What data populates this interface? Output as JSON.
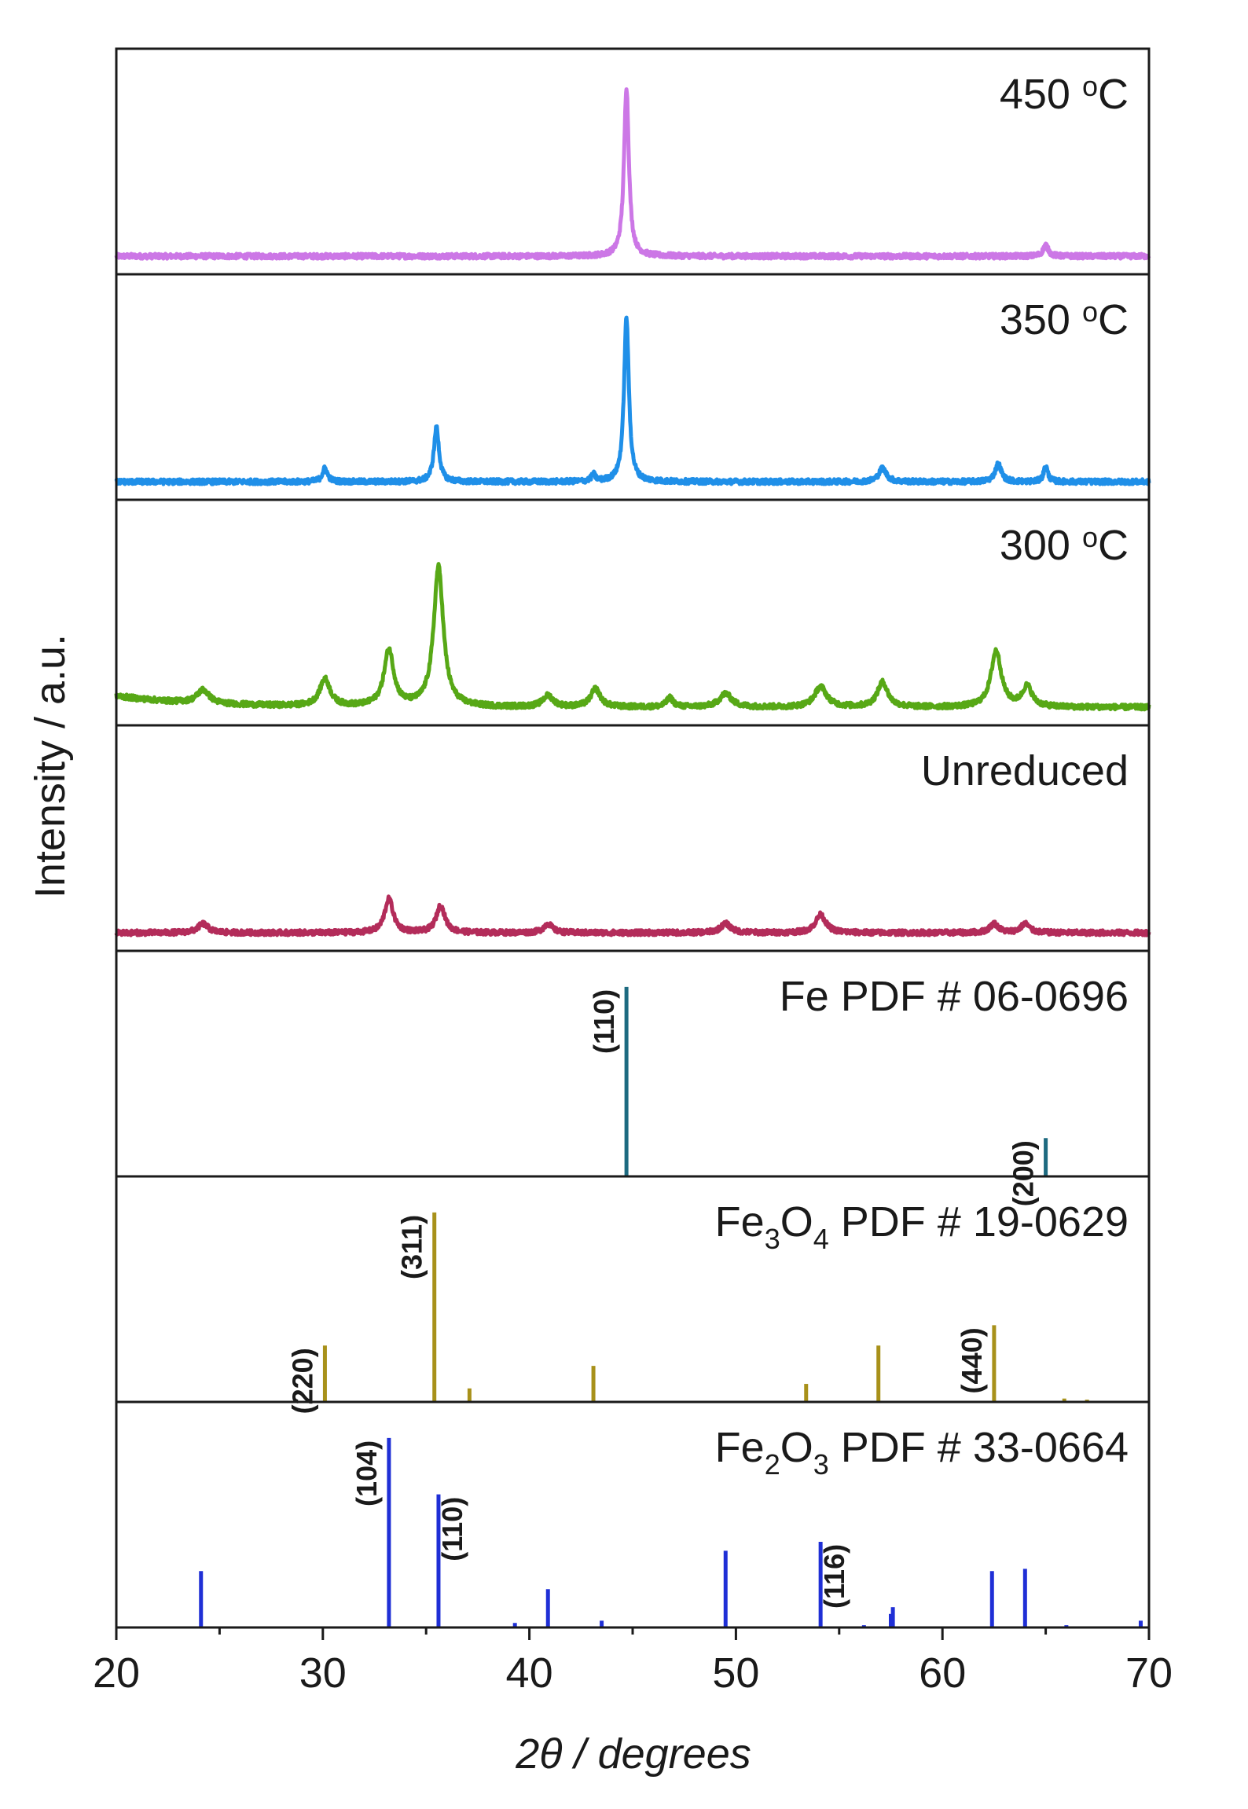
{
  "chart_data": {
    "type": "line",
    "xlabel": "2θ / degrees",
    "ylabel": "Intensity / a.u.",
    "xlim": [
      20,
      70
    ],
    "xticks": [
      20,
      30,
      40,
      50,
      60,
      70
    ],
    "xtick_labels": [
      "20",
      "30",
      "40",
      "50",
      "60",
      "70"
    ],
    "grid": false,
    "panels": [
      {
        "id": "t450",
        "label_parts": [
          "450 ",
          "o",
          "C"
        ],
        "kind": "pattern",
        "color": "#cc77e6",
        "baseline": 0.08,
        "peaks": [
          {
            "x": 44.7,
            "h": 0.75,
            "w": 0.14
          },
          {
            "x": 65.0,
            "h": 0.05,
            "w": 0.15
          }
        ]
      },
      {
        "id": "t350",
        "label_parts": [
          "350 ",
          "o",
          "C"
        ],
        "kind": "pattern",
        "color": "#1f8fe8",
        "baseline": 0.08,
        "peaks": [
          {
            "x": 30.1,
            "h": 0.06,
            "w": 0.15
          },
          {
            "x": 35.5,
            "h": 0.24,
            "w": 0.15
          },
          {
            "x": 43.1,
            "h": 0.03,
            "w": 0.12
          },
          {
            "x": 44.7,
            "h": 0.73,
            "w": 0.14
          },
          {
            "x": 57.1,
            "h": 0.06,
            "w": 0.22
          },
          {
            "x": 62.7,
            "h": 0.08,
            "w": 0.18
          },
          {
            "x": 65.0,
            "h": 0.07,
            "w": 0.12
          }
        ]
      },
      {
        "id": "t300",
        "label_parts": [
          "300 ",
          "o",
          "C"
        ],
        "kind": "pattern",
        "color": "#57a816",
        "baseline": 0.08,
        "peaks": [
          {
            "x": 24.2,
            "h": 0.06,
            "w": 0.35
          },
          {
            "x": 30.1,
            "h": 0.12,
            "w": 0.3
          },
          {
            "x": 33.2,
            "h": 0.25,
            "w": 0.28
          },
          {
            "x": 35.6,
            "h": 0.62,
            "w": 0.28
          },
          {
            "x": 40.9,
            "h": 0.05,
            "w": 0.3
          },
          {
            "x": 43.2,
            "h": 0.08,
            "w": 0.28
          },
          {
            "x": 46.8,
            "h": 0.04,
            "w": 0.2
          },
          {
            "x": 49.5,
            "h": 0.06,
            "w": 0.35
          },
          {
            "x": 54.1,
            "h": 0.09,
            "w": 0.35
          },
          {
            "x": 57.1,
            "h": 0.11,
            "w": 0.3
          },
          {
            "x": 62.6,
            "h": 0.25,
            "w": 0.3
          },
          {
            "x": 64.1,
            "h": 0.09,
            "w": 0.28
          }
        ]
      },
      {
        "id": "unreduced",
        "label_parts": [
          "Unreduced"
        ],
        "kind": "pattern",
        "color": "#b32c5a",
        "baseline": 0.08,
        "peaks": [
          {
            "x": 24.2,
            "h": 0.04,
            "w": 0.3
          },
          {
            "x": 33.2,
            "h": 0.15,
            "w": 0.25
          },
          {
            "x": 35.7,
            "h": 0.12,
            "w": 0.25
          },
          {
            "x": 40.9,
            "h": 0.04,
            "w": 0.25
          },
          {
            "x": 49.5,
            "h": 0.04,
            "w": 0.3
          },
          {
            "x": 54.1,
            "h": 0.08,
            "w": 0.3
          },
          {
            "x": 62.5,
            "h": 0.04,
            "w": 0.25
          },
          {
            "x": 64.0,
            "h": 0.04,
            "w": 0.25
          }
        ]
      },
      {
        "id": "fe",
        "label_parts": [
          "Fe PDF # 06-0696"
        ],
        "kind": "reference",
        "color": "#1d6a80",
        "sticks": [
          {
            "x": 44.7,
            "h": 0.84
          },
          {
            "x": 65.0,
            "h": 0.17
          }
        ],
        "hkl": [
          {
            "text": "(110)",
            "x": 44.7,
            "side": "left",
            "h": 0.84
          },
          {
            "text": "(200)",
            "x": 65.0,
            "side": "left",
            "h": 0.17
          }
        ]
      },
      {
        "id": "fe3o4",
        "label_parts": [
          "Fe",
          "3",
          "O",
          "4",
          " PDF # 19-0629"
        ],
        "kind": "reference",
        "color": "#a8911a",
        "sticks": [
          {
            "x": 30.1,
            "h": 0.25
          },
          {
            "x": 35.4,
            "h": 0.84
          },
          {
            "x": 37.1,
            "h": 0.06
          },
          {
            "x": 43.1,
            "h": 0.16
          },
          {
            "x": 53.4,
            "h": 0.08
          },
          {
            "x": 56.9,
            "h": 0.25
          },
          {
            "x": 62.5,
            "h": 0.34
          },
          {
            "x": 65.9,
            "h": 0.015
          },
          {
            "x": 67.0,
            "h": 0.01
          }
        ],
        "hkl": [
          {
            "text": "(220)",
            "x": 30.1,
            "side": "left",
            "h": 0.25
          },
          {
            "text": "(311)",
            "x": 35.4,
            "side": "left",
            "h": 0.84
          },
          {
            "text": "(440)",
            "x": 62.5,
            "side": "left",
            "h": 0.34
          }
        ]
      },
      {
        "id": "fe2o3",
        "label_parts": [
          "Fe",
          "2",
          "O",
          "3",
          " PDF # 33-0664"
        ],
        "kind": "reference",
        "color": "#1f2fd6",
        "sticks": [
          {
            "x": 24.1,
            "h": 0.25
          },
          {
            "x": 33.2,
            "h": 0.84
          },
          {
            "x": 35.6,
            "h": 0.59
          },
          {
            "x": 39.3,
            "h": 0.02
          },
          {
            "x": 40.9,
            "h": 0.17
          },
          {
            "x": 43.5,
            "h": 0.03
          },
          {
            "x": 49.5,
            "h": 0.34
          },
          {
            "x": 54.1,
            "h": 0.38
          },
          {
            "x": 56.2,
            "h": 0.01
          },
          {
            "x": 57.5,
            "h": 0.06
          },
          {
            "x": 57.6,
            "h": 0.09
          },
          {
            "x": 62.4,
            "h": 0.25
          },
          {
            "x": 64.0,
            "h": 0.26
          },
          {
            "x": 66.0,
            "h": 0.01
          },
          {
            "x": 69.6,
            "h": 0.03
          }
        ],
        "hkl": [
          {
            "text": "(104)",
            "x": 33.2,
            "side": "left",
            "h": 0.84
          },
          {
            "text": "(110)",
            "x": 35.6,
            "side": "right",
            "h": 0.59
          },
          {
            "text": "(116)",
            "x": 54.1,
            "side": "right",
            "h": 0.38
          }
        ]
      }
    ]
  }
}
